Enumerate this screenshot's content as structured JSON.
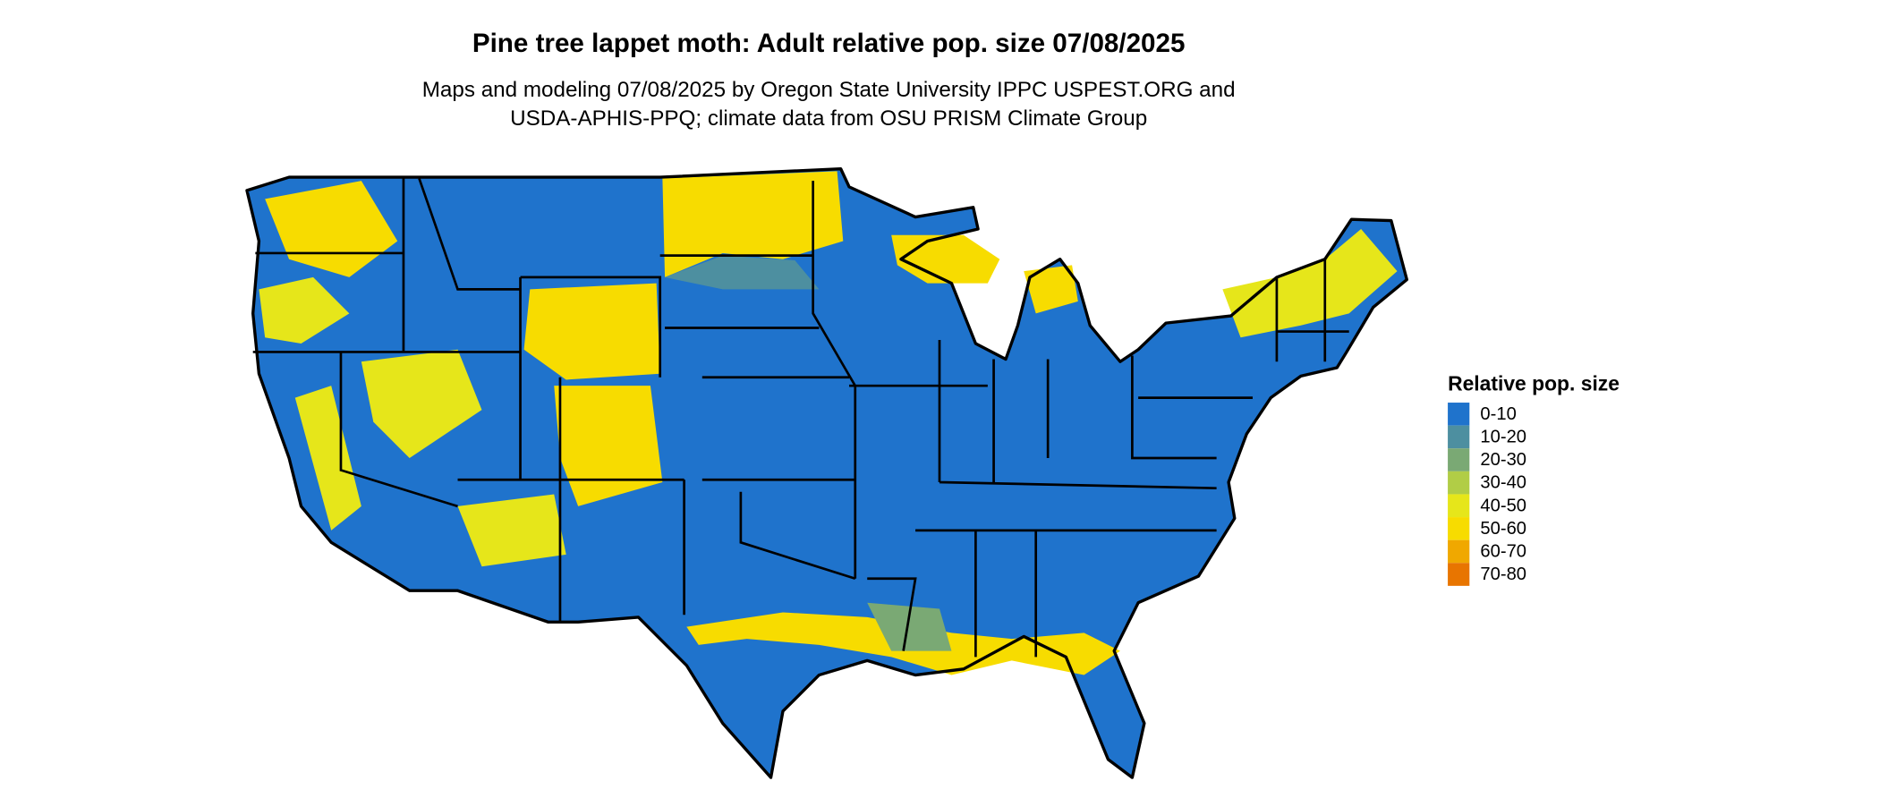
{
  "title": "Pine tree lappet moth: Adult relative pop. size 07/08/2025",
  "subtitle": [
    "Maps and modeling 07/08/2025 by Oregon State University IPPC USPEST.ORG and",
    "USDA-APHIS-PPQ; climate data from OSU PRISM Climate Group"
  ],
  "legend": {
    "title": "Relative pop. size",
    "items": [
      {
        "label": "0-10",
        "color": "#1f73cc"
      },
      {
        "label": "10-20",
        "color": "#4d8fa0"
      },
      {
        "label": "20-30",
        "color": "#7aa974"
      },
      {
        "label": "30-40",
        "color": "#b1cd46"
      },
      {
        "label": "40-50",
        "color": "#e6e61a"
      },
      {
        "label": "50-60",
        "color": "#f7dc00"
      },
      {
        "label": "60-70",
        "color": "#f0a800"
      },
      {
        "label": "70-80",
        "color": "#e87500"
      }
    ]
  }
}
